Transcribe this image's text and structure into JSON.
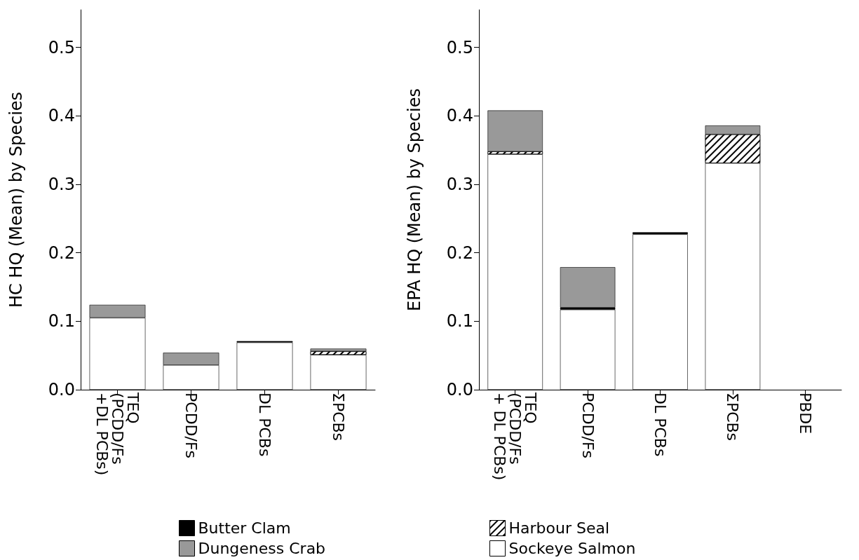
{
  "chart_data": [
    {
      "type": "bar",
      "stacked": true,
      "ylabel": "HC HQ (Mean) by Species",
      "categories": [
        "TEQ (PCDD/Fs +DL PCBs)",
        "PCDD/Fs",
        "DL PCBs",
        "ΣPCBs"
      ],
      "ylim": [
        0,
        0.555
      ],
      "yticks": [
        {
          "value": 0,
          "label": "0.0"
        },
        0.1,
        0.2,
        0.3,
        0.4,
        0.5
      ],
      "grid": false,
      "legend": "bottom",
      "series": [
        {
          "color": "#ffffff",
          "values": [
            0.105,
            0.036,
            0.069,
            0.051
          ]
        },
        {
          "color": "#ffffff",
          "values": [
            0,
            0,
            0,
            0.005
          ]
        },
        {
          "name": "Butter Clam",
          "color": "#000000",
          "values": [
            0,
            0,
            0.002,
            0
          ]
        },
        {
          "name": "Dungeness Crab",
          "color": "#999999",
          "values": [
            0.019,
            0.018,
            0,
            0.004
          ]
        }
      ]
    },
    {
      "type": "bar",
      "stacked": true,
      "ylabel": "EPA HQ (Mean) by Species",
      "categories": [
        "TEQ (PCDD/Fs + DL PCBs)",
        "PCDD/Fs",
        "DL PCBs",
        "ΣPCBs",
        "PBDE"
      ],
      "ylim": [
        0,
        0.555
      ],
      "yticks": [
        {
          "value": 0,
          "label": "0.0"
        },
        0.1,
        0.2,
        0.3,
        0.4,
        0.5
      ],
      "grid": false,
      "legend": "bottom",
      "series": [
        {
          "name": "Sockeye Salmon",
          "color": "#ffffff",
          "values": [
            0.344,
            0.117,
            0.227,
            0.331,
            0
          ]
        },
        {
          "name": "Harbour Seal",
          "color": "#ffffff",
          "values": [
            0.004,
            0,
            0,
            0.042,
            0
          ]
        },
        {
          "color": "#000000",
          "values": [
            0,
            0.003,
            0.003,
            0,
            0
          ]
        },
        {
          "color": "#999999",
          "values": [
            0.06,
            0.059,
            0,
            0.013,
            0
          ]
        }
      ]
    }
  ]
}
